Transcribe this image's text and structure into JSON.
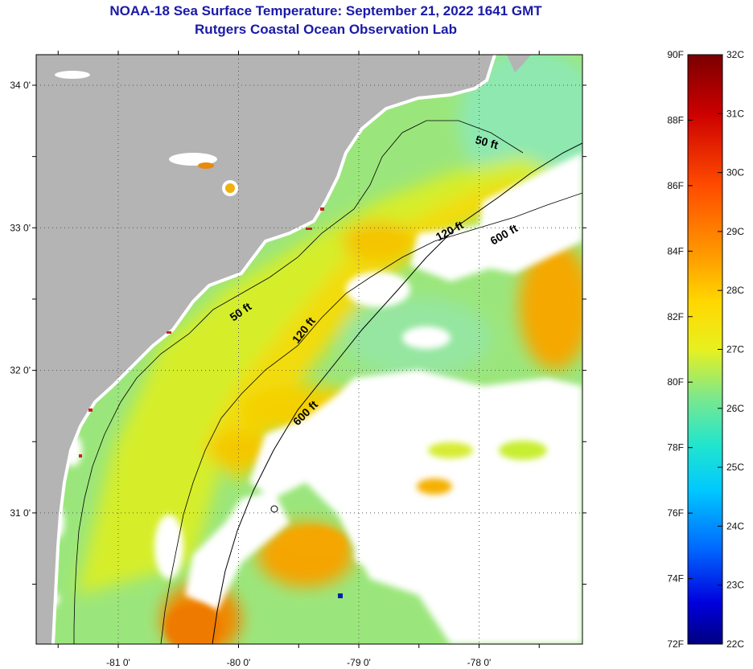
{
  "title_line1": "NOAA-18 Sea Surface Temperature:  September 21, 2022 1641 GMT",
  "title_line2": "Rutgers Coastal Ocean Observation Lab",
  "x_ticks": [
    {
      "lon": -81,
      "label": "-81 0'"
    },
    {
      "lon": -80,
      "label": "-80 0'"
    },
    {
      "lon": -79,
      "label": "-79 0'"
    },
    {
      "lon": -78,
      "label": "-78 0'"
    }
  ],
  "y_ticks": [
    {
      "lat": 34,
      "label": "34 0'"
    },
    {
      "lat": 33,
      "label": "33 0'"
    },
    {
      "lat": 32,
      "label": "32 0'"
    },
    {
      "lat": 31,
      "label": "31 0'"
    }
  ],
  "contour_labels": [
    {
      "text": "50 ft"
    },
    {
      "text": "120 ft"
    },
    {
      "text": "600 ft"
    },
    {
      "text": "50 ft"
    },
    {
      "text": "120 ft"
    },
    {
      "text": "600 ft"
    }
  ],
  "colorbar": {
    "f_labels": [
      "90F",
      "88F",
      "86F",
      "84F",
      "82F",
      "80F",
      "78F",
      "76F",
      "74F",
      "72F"
    ],
    "c_labels": [
      "32C",
      "31C",
      "30C",
      "29C",
      "28C",
      "27C",
      "26C",
      "25C",
      "24C",
      "23C",
      "22C"
    ]
  },
  "colors": {
    "land": "#b4b4b4",
    "cloud": "#ffffff",
    "title": "#1a1aa8",
    "sst_warm": "#f5b800",
    "sst_mid": "#c8ee20",
    "sst_cool": "#9be67c"
  }
}
